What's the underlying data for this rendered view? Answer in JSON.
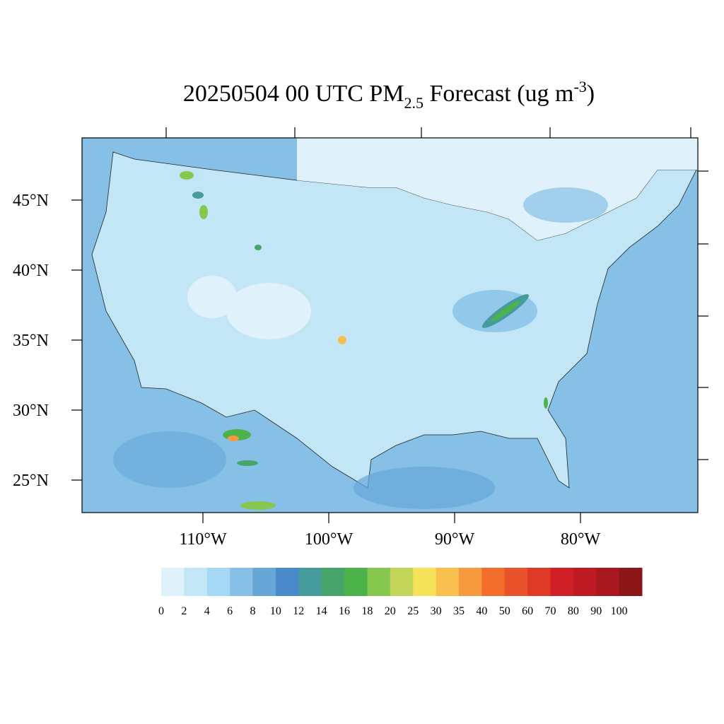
{
  "title": {
    "main": "20250504 00 UTC PM",
    "sub": "2.5",
    "mid": " Forecast (ug m",
    "sup": "-3",
    "end": ")"
  },
  "map": {
    "lat_labels": [
      "45°N",
      "40°N",
      "35°N",
      "30°N",
      "25°N"
    ],
    "lon_labels": [
      "110°W",
      "100°W",
      "90°W",
      "80°W"
    ]
  },
  "colorbar": {
    "labels": [
      0,
      2,
      4,
      6,
      8,
      10,
      12,
      14,
      16,
      18,
      20,
      25,
      30,
      35,
      40,
      50,
      60,
      70,
      80,
      90,
      100
    ],
    "colors": [
      "#dff1fa",
      "#c3e6f7",
      "#a4d8f5",
      "#86c0e6",
      "#67a7d8",
      "#4a8acb",
      "#469b9c",
      "#47a56b",
      "#4bb34a",
      "#86c74e",
      "#c3d65a",
      "#f7e35a",
      "#f8be4e",
      "#f69a3d",
      "#f26c2c",
      "#e9522b",
      "#df3a26",
      "#d01f27",
      "#bd1a24",
      "#a9181f",
      "#8c1517"
    ]
  }
}
